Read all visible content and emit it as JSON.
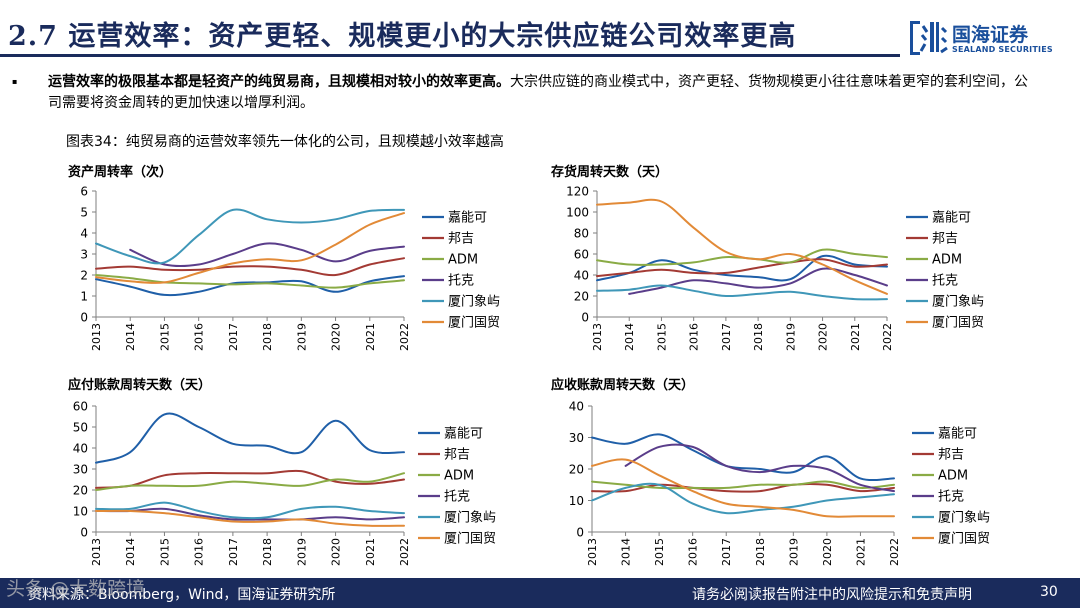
{
  "header": {
    "section_number": "2.7",
    "title": "运营效率：资产更轻、规模更小的大宗供应链公司效率更高",
    "logo_cn": "国海证券",
    "logo_en": "SEALAND SECURITIES"
  },
  "body": {
    "bullet": "▪",
    "bold_text": "运营效率的极限基本都是轻资产的纯贸易商，且规模相对较小的效率更高。",
    "normal_text": "大宗供应链的商业模式中，资产更轻、货物规模更小往往意味着更窄的套利空间，公司需要将资金周转的更加快速以增厚利润。"
  },
  "figure": {
    "title": "图表34：纯贸易商的运营效率领先一体化的公司，且规模越小效率越高"
  },
  "colors": {
    "嘉能可": "#1f5fa8",
    "邦吉": "#a33a34",
    "ADM": "#8aab45",
    "托克": "#5a3d8a",
    "厦门象屿": "#3f97b8",
    "厦门国贸": "#e28a37",
    "navy": "#1a2b5c"
  },
  "chart_data": [
    {
      "type": "line",
      "title": "资产周转率（次）",
      "categories": [
        "2013",
        "2014",
        "2015",
        "2016",
        "2017",
        "2018",
        "2019",
        "2020",
        "2021",
        "2022"
      ],
      "ylim": [
        0,
        6
      ],
      "yticks": [
        "0",
        "1",
        "2",
        "3",
        "4",
        "5",
        "6"
      ],
      "series": [
        {
          "name": "嘉能可",
          "values": [
            1.8,
            1.45,
            1.05,
            1.2,
            1.6,
            1.65,
            1.7,
            1.2,
            1.7,
            1.95
          ]
        },
        {
          "name": "邦吉",
          "values": [
            2.3,
            2.4,
            2.25,
            2.25,
            2.4,
            2.4,
            2.25,
            2.0,
            2.5,
            2.8
          ]
        },
        {
          "name": "ADM",
          "values": [
            2.0,
            1.85,
            1.65,
            1.6,
            1.55,
            1.6,
            1.5,
            1.4,
            1.6,
            1.75
          ]
        },
        {
          "name": "托克",
          "values": [
            null,
            3.2,
            2.5,
            2.5,
            3.0,
            3.5,
            3.2,
            2.65,
            3.15,
            3.35
          ]
        },
        {
          "name": "厦门象屿",
          "values": [
            3.5,
            2.9,
            2.6,
            3.9,
            5.1,
            4.65,
            4.5,
            4.65,
            5.05,
            5.1
          ]
        },
        {
          "name": "厦门国贸",
          "values": [
            1.9,
            1.7,
            1.65,
            2.1,
            2.55,
            2.75,
            2.7,
            3.45,
            4.4,
            4.95
          ]
        }
      ]
    },
    {
      "type": "line",
      "title": "存货周转天数（天）",
      "categories": [
        "2013",
        "2014",
        "2015",
        "2016",
        "2017",
        "2018",
        "2019",
        "2020",
        "2021",
        "2022"
      ],
      "ylim": [
        0,
        120
      ],
      "yticks": [
        "0",
        "20",
        "40",
        "60",
        "80",
        "100",
        "120"
      ],
      "series": [
        {
          "name": "嘉能可",
          "values": [
            35,
            42,
            54,
            45,
            40,
            38,
            36,
            58,
            50,
            48
          ]
        },
        {
          "name": "邦吉",
          "values": [
            39,
            42,
            45,
            42,
            42,
            47,
            52,
            55,
            48,
            50
          ]
        },
        {
          "name": "ADM",
          "values": [
            54,
            50,
            50,
            52,
            57,
            55,
            52,
            64,
            60,
            57
          ]
        },
        {
          "name": "托克",
          "values": [
            null,
            22,
            28,
            35,
            32,
            28,
            32,
            46,
            40,
            30
          ]
        },
        {
          "name": "厦门象屿",
          "values": [
            25,
            26,
            30,
            25,
            20,
            22,
            24,
            20,
            17,
            17
          ]
        },
        {
          "name": "厦门国贸",
          "values": [
            107,
            109,
            110,
            85,
            62,
            55,
            60,
            50,
            35,
            22
          ]
        }
      ]
    },
    {
      "type": "line",
      "title": "应付账款周转天数（天）",
      "categories": [
        "2013",
        "2014",
        "2015",
        "2016",
        "2017",
        "2018",
        "2019",
        "2020",
        "2021",
        "2022"
      ],
      "ylim": [
        0,
        60
      ],
      "yticks": [
        "0",
        "10",
        "20",
        "30",
        "40",
        "50",
        "60"
      ],
      "series": [
        {
          "name": "嘉能可",
          "values": [
            33,
            38,
            56,
            50,
            42,
            41,
            38,
            53,
            39,
            38
          ]
        },
        {
          "name": "邦吉",
          "values": [
            21,
            22,
            27,
            28,
            28,
            28,
            29,
            24,
            23,
            25
          ]
        },
        {
          "name": "ADM",
          "values": [
            20,
            22,
            22,
            22,
            24,
            23,
            22,
            25,
            24,
            28
          ]
        },
        {
          "name": "托克",
          "values": [
            10,
            10,
            11,
            8,
            6,
            6,
            6,
            7,
            6,
            7
          ]
        },
        {
          "name": "厦门象屿",
          "values": [
            11,
            11,
            14,
            10,
            7,
            7,
            11,
            12,
            10,
            9
          ]
        },
        {
          "name": "厦门国贸",
          "values": [
            10,
            10,
            9,
            7,
            5,
            5,
            6,
            4,
            3,
            3
          ]
        }
      ]
    },
    {
      "type": "line",
      "title": "应收账款周转天数（天）",
      "categories": [
        "2013",
        "2014",
        "2015",
        "2016",
        "2017",
        "2018",
        "2019",
        "2020",
        "2021",
        "2022"
      ],
      "ylim": [
        0,
        40
      ],
      "yticks": [
        "0",
        "10",
        "20",
        "30",
        "40"
      ],
      "series": [
        {
          "name": "嘉能可",
          "values": [
            30,
            28,
            31,
            26,
            21,
            20,
            19,
            24,
            17,
            17
          ]
        },
        {
          "name": "邦吉",
          "values": [
            13,
            13,
            15,
            14,
            13,
            13,
            15,
            15,
            13,
            14
          ]
        },
        {
          "name": "ADM",
          "values": [
            16,
            15,
            14,
            14,
            14,
            15,
            15,
            16,
            14,
            15
          ]
        },
        {
          "name": "托克",
          "values": [
            null,
            21,
            27,
            27,
            21,
            19,
            21,
            20,
            15,
            13
          ]
        },
        {
          "name": "厦门象屿",
          "values": [
            10,
            14,
            15,
            9,
            6,
            7,
            8,
            10,
            11,
            12
          ]
        },
        {
          "name": "厦门国贸",
          "values": [
            21,
            23,
            18,
            13,
            9,
            8,
            7,
            5,
            5,
            5
          ]
        }
      ]
    }
  ],
  "footer": {
    "source": "资料来源：Bloomberg，Wind，国海证券研究所",
    "disclaimer": "请务必阅读报告附注中的风险提示和免责声明",
    "page": "30",
    "watermark": "头条 @大数跨境"
  }
}
